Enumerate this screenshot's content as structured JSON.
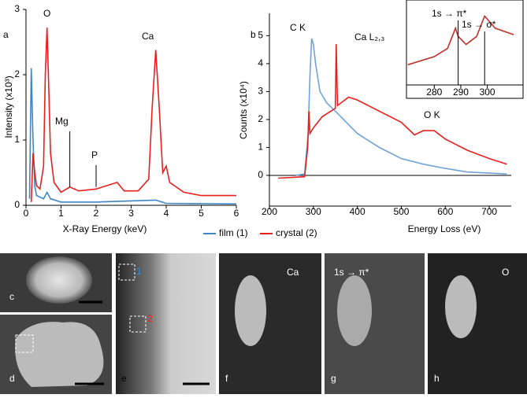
{
  "chart_data": [
    {
      "type": "line",
      "panel_label": "a",
      "xlabel": "X-Ray Energy (keV)",
      "ylabel": "Intensity (x10³)",
      "xlim": [
        0,
        6
      ],
      "ylim": [
        0,
        3
      ],
      "xticks": [
        0,
        1,
        2,
        3,
        4,
        5,
        6
      ],
      "yticks": [
        0,
        1,
        2,
        3
      ],
      "series": [
        {
          "name": "film (1)",
          "color": "#3d85c6",
          "x": [
            0.1,
            0.15,
            0.2,
            0.25,
            0.3,
            0.5,
            0.6,
            0.7,
            1,
            2,
            3.7,
            4,
            6
          ],
          "values": [
            0.1,
            2.1,
            1.0,
            0.3,
            0.15,
            0.1,
            0.2,
            0.1,
            0.05,
            0.05,
            0.08,
            0.03,
            0.02
          ]
        },
        {
          "name": "crystal (2)",
          "color": "#e8201c",
          "x": [
            0.15,
            0.2,
            0.25,
            0.3,
            0.4,
            0.5,
            0.55,
            0.6,
            0.65,
            0.7,
            0.8,
            1.0,
            1.25,
            1.5,
            2.0,
            2.3,
            2.6,
            2.8,
            3.2,
            3.5,
            3.6,
            3.7,
            3.8,
            3.9,
            4.0,
            4.1,
            4.5,
            5,
            6
          ],
          "values": [
            0.05,
            0.8,
            0.5,
            0.3,
            0.25,
            0.6,
            2.0,
            2.72,
            1.8,
            0.8,
            0.35,
            0.2,
            0.28,
            0.22,
            0.25,
            0.3,
            0.35,
            0.22,
            0.22,
            0.4,
            1.5,
            2.38,
            1.5,
            0.5,
            0.6,
            0.35,
            0.2,
            0.15,
            0.15
          ]
        }
      ],
      "annotations": [
        "O",
        "Mg",
        "P",
        "Ca"
      ]
    },
    {
      "type": "line",
      "panel_label": "b",
      "xlabel": "Energy Loss (eV)",
      "ylabel": "Counts (x10⁴)",
      "xlim": [
        200,
        750
      ],
      "ylim": [
        -1.1,
        5.8
      ],
      "xticks": [
        200,
        300,
        400,
        500,
        600,
        700
      ],
      "yticks": [
        0,
        1,
        2,
        3,
        4,
        5
      ],
      "series": [
        {
          "color": "#6fa3d6",
          "x": [
            260,
            280,
            288,
            292,
            296,
            300,
            305,
            315,
            330,
            350,
            400,
            450,
            500,
            550,
            600,
            650,
            740
          ],
          "values": [
            0,
            0.05,
            1.5,
            3.5,
            4.9,
            4.7,
            4.0,
            3.0,
            2.6,
            2.3,
            1.5,
            1.0,
            0.6,
            0.4,
            0.25,
            0.12,
            0.05
          ]
        },
        {
          "color": "#e8201c",
          "x": [
            220,
            280,
            287,
            290,
            292,
            300,
            320,
            350,
            352,
            355,
            380,
            400,
            450,
            500,
            530,
            550,
            575,
            600,
            650,
            700,
            740
          ],
          "values": [
            -0.1,
            -0.05,
            1.0,
            2.3,
            1.5,
            1.7,
            2.1,
            2.4,
            4.7,
            2.5,
            2.8,
            2.7,
            2.3,
            1.9,
            1.45,
            1.6,
            1.6,
            1.3,
            0.9,
            0.6,
            0.4
          ]
        }
      ],
      "annotations": [
        "C K",
        "Ca L₂,₃",
        "O K"
      ]
    },
    {
      "type": "line",
      "xlim": [
        269.5,
        313.5
      ],
      "ylim": [
        0,
        1
      ],
      "xticks": [
        280,
        290,
        300
      ],
      "series": [
        {
          "color": "#c0302a",
          "x": [
            270,
            280,
            285,
            288,
            289,
            292,
            296,
            299,
            303,
            310
          ],
          "values": [
            0.25,
            0.35,
            0.45,
            0.7,
            0.6,
            0.5,
            0.6,
            0.85,
            0.7,
            0.62
          ]
        }
      ],
      "annotations": [
        "1s → π*",
        "1s → σ*"
      ]
    }
  ],
  "panels": {
    "labels": [
      "c",
      "d",
      "e",
      "f",
      "g",
      "h"
    ],
    "overlays": [
      "Ca",
      "1s → π*",
      "O",
      "1",
      "2"
    ]
  }
}
